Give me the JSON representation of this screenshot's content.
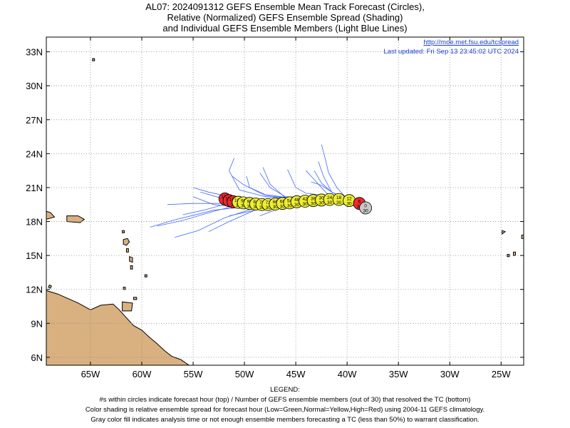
{
  "title": {
    "line1": "AL07: 2024091312 GEFS Ensemble Mean Track Forecast (Circles),",
    "line2": "Relative (Normalized) GEFS Ensemble Spread (Shading)",
    "line3": "and Individual GEFS Ensemble Members (Light Blue Lines)"
  },
  "header_info": {
    "url": "http://moe.met.fsu.edu/tcspread",
    "updated": "Last updated: Fri Sep 13 23:45:02 UTC 2024"
  },
  "axes": {
    "lon_ticks": [
      {
        "lon": -65,
        "label": "65W"
      },
      {
        "lon": -60,
        "label": "60W"
      },
      {
        "lon": -55,
        "label": "55W"
      },
      {
        "lon": -50,
        "label": "50W"
      },
      {
        "lon": -45,
        "label": "45W"
      },
      {
        "lon": -40,
        "label": "40W"
      },
      {
        "lon": -35,
        "label": "35W"
      },
      {
        "lon": -30,
        "label": "30W"
      },
      {
        "lon": -25,
        "label": "25W"
      }
    ],
    "lat_ticks": [
      {
        "lat": 6,
        "label": "6N"
      },
      {
        "lat": 9,
        "label": "9N"
      },
      {
        "lat": 12,
        "label": "12N"
      },
      {
        "lat": 15,
        "label": "15N"
      },
      {
        "lat": 18,
        "label": "18N"
      },
      {
        "lat": 21,
        "label": "21N"
      },
      {
        "lat": 24,
        "label": "24N"
      },
      {
        "lat": 27,
        "label": "27N"
      },
      {
        "lat": 30,
        "label": "30N"
      },
      {
        "lat": 33,
        "label": "33N"
      }
    ],
    "lon_range": [
      -69.3,
      -22.8
    ],
    "lat_range": [
      5.3,
      34.3
    ],
    "grid": true
  },
  "colors": {
    "land": "#d9b07f",
    "member_tracks": "#4466ff",
    "low_spread": "#00bb00",
    "normal_spread": "#eeee33",
    "high_spread": "#ee2a2a",
    "insufficient": "#c8c8c8",
    "link": "#1b3fd1"
  },
  "mean_track": [
    {
      "hour": 0,
      "members": 30,
      "lon": -38.2,
      "lat": 19.2,
      "spread": "gray"
    },
    {
      "hour": 6,
      "members": 30,
      "lon": -38.8,
      "lat": 19.6,
      "spread": "red"
    },
    {
      "hour": 12,
      "members": 30,
      "lon": -39.8,
      "lat": 19.85,
      "spread": "yellow"
    },
    {
      "hour": 18,
      "members": 30,
      "lon": -40.8,
      "lat": 19.95,
      "spread": "yellow"
    },
    {
      "hour": 24,
      "members": 30,
      "lon": -41.7,
      "lat": 19.95,
      "spread": "yellow"
    },
    {
      "hour": 30,
      "members": 30,
      "lon": -42.5,
      "lat": 19.9,
      "spread": "yellow"
    },
    {
      "hour": 36,
      "members": 30,
      "lon": -43.3,
      "lat": 19.85,
      "spread": "yellow"
    },
    {
      "hour": 42,
      "members": 30,
      "lon": -44.1,
      "lat": 19.8,
      "spread": "yellow"
    },
    {
      "hour": 48,
      "members": 30,
      "lon": -44.9,
      "lat": 19.75,
      "spread": "yellow"
    },
    {
      "hour": 54,
      "members": 30,
      "lon": -45.6,
      "lat": 19.65,
      "spread": "yellow"
    },
    {
      "hour": 60,
      "members": 30,
      "lon": -46.3,
      "lat": 19.6,
      "spread": "yellow"
    },
    {
      "hour": 66,
      "members": 30,
      "lon": -47.0,
      "lat": 19.55,
      "spread": "yellow"
    },
    {
      "hour": 72,
      "members": 30,
      "lon": -47.7,
      "lat": 19.5,
      "spread": "yellow"
    },
    {
      "hour": 78,
      "members": 30,
      "lon": -48.3,
      "lat": 19.5,
      "spread": "yellow"
    },
    {
      "hour": 84,
      "members": 30,
      "lon": -48.9,
      "lat": 19.55,
      "spread": "yellow"
    },
    {
      "hour": 90,
      "members": 30,
      "lon": -49.5,
      "lat": 19.6,
      "spread": "yellow"
    },
    {
      "hour": 96,
      "members": 30,
      "lon": -50.1,
      "lat": 19.65,
      "spread": "yellow"
    },
    {
      "hour": 102,
      "members": 30,
      "lon": -50.6,
      "lat": 19.7,
      "spread": "yellow"
    },
    {
      "hour": 108,
      "members": 30,
      "lon": -51.1,
      "lat": 19.75,
      "spread": "red"
    },
    {
      "hour": 114,
      "members": 30,
      "lon": -51.5,
      "lat": 19.85,
      "spread": "red"
    },
    {
      "hour": 120,
      "members": 30,
      "lon": -51.9,
      "lat": 20.0,
      "spread": "red"
    }
  ],
  "member_tracks": [
    [
      [
        -38.5,
        19.3
      ],
      [
        -41,
        19.7
      ],
      [
        -45,
        19.8
      ],
      [
        -49,
        19.4
      ],
      [
        -53,
        19
      ],
      [
        -57,
        18.1
      ],
      [
        -59.2,
        17.5
      ]
    ],
    [
      [
        -38.5,
        19.3
      ],
      [
        -41,
        19.9
      ],
      [
        -44,
        20.2
      ],
      [
        -47,
        20.0
      ],
      [
        -50,
        19.6
      ],
      [
        -53,
        18.9
      ],
      [
        -56,
        18.1
      ],
      [
        -58.5,
        17.6
      ]
    ],
    [
      [
        -38.5,
        19.3
      ],
      [
        -41,
        19.8
      ],
      [
        -45,
        19.6
      ],
      [
        -49,
        19.2
      ],
      [
        -52,
        18.3
      ],
      [
        -54.5,
        17.2
      ],
      [
        -56.8,
        16.6
      ]
    ],
    [
      [
        -38.5,
        19.3
      ],
      [
        -41,
        19.6
      ],
      [
        -45,
        19.5
      ],
      [
        -49,
        19.0
      ],
      [
        -51.5,
        18.0
      ],
      [
        -53.5,
        17.1
      ]
    ],
    [
      [
        -38.5,
        19.3
      ],
      [
        -41,
        19.8
      ],
      [
        -45,
        19.9
      ],
      [
        -49,
        19.7
      ],
      [
        -52,
        19.6
      ],
      [
        -55,
        19.6
      ],
      [
        -57.5,
        19.5
      ]
    ],
    [
      [
        -38.5,
        19.3
      ],
      [
        -40,
        19.9
      ],
      [
        -42,
        20.3
      ],
      [
        -44,
        20.5
      ],
      [
        -45,
        21.0
      ],
      [
        -45.8,
        22.6
      ]
    ],
    [
      [
        -38.5,
        19.3
      ],
      [
        -40,
        20.0
      ],
      [
        -41.5,
        20.6
      ],
      [
        -42.3,
        22.0
      ],
      [
        -42.8,
        23.3
      ]
    ],
    [
      [
        -38.5,
        19.3
      ],
      [
        -40,
        20.0
      ],
      [
        -41,
        21.0
      ],
      [
        -41.8,
        22.3
      ],
      [
        -42.2,
        23.8
      ],
      [
        -42.5,
        24.8
      ]
    ],
    [
      [
        -38.5,
        19.3
      ],
      [
        -40,
        19.9
      ],
      [
        -42,
        20.5
      ],
      [
        -43.2,
        21.7
      ],
      [
        -44,
        22.5
      ]
    ],
    [
      [
        -38.5,
        19.3
      ],
      [
        -40,
        19.8
      ],
      [
        -43,
        20.1
      ],
      [
        -46,
        20.2
      ],
      [
        -47.5,
        21.0
      ],
      [
        -48.5,
        22.3
      ]
    ],
    [
      [
        -38.5,
        19.3
      ],
      [
        -40,
        19.8
      ],
      [
        -43,
        20.0
      ],
      [
        -46,
        20.1
      ],
      [
        -47.5,
        21.3
      ],
      [
        -48.2,
        22.8
      ]
    ],
    [
      [
        -38.5,
        19.3
      ],
      [
        -41,
        19.8
      ],
      [
        -45,
        20.0
      ],
      [
        -48,
        20.2
      ],
      [
        -50.5,
        20.8
      ],
      [
        -51.5,
        22.5
      ],
      [
        -51,
        23.6
      ]
    ],
    [
      [
        -38.5,
        19.3
      ],
      [
        -41,
        19.8
      ],
      [
        -45,
        20.0
      ],
      [
        -48,
        20.4
      ],
      [
        -50,
        21.2
      ],
      [
        -51.2,
        22.0
      ]
    ],
    [
      [
        -38.5,
        19.3
      ],
      [
        -41,
        19.8
      ],
      [
        -45,
        19.9
      ],
      [
        -48,
        19.9
      ],
      [
        -51,
        20.1
      ],
      [
        -53.5,
        20.6
      ],
      [
        -55,
        21.0
      ]
    ],
    [
      [
        -38.5,
        19.3
      ],
      [
        -41,
        19.7
      ],
      [
        -45,
        19.7
      ],
      [
        -48,
        19.5
      ],
      [
        -51,
        19.3
      ],
      [
        -53,
        19.5
      ],
      [
        -55,
        20.2
      ]
    ],
    [
      [
        -38.5,
        19.3
      ],
      [
        -41,
        19.7
      ],
      [
        -44,
        19.7
      ],
      [
        -47,
        19.5
      ],
      [
        -49.5,
        18.9
      ],
      [
        -51.5,
        18.5
      ]
    ],
    [
      [
        -38.5,
        19.3
      ],
      [
        -41,
        19.6
      ],
      [
        -44,
        19.5
      ],
      [
        -46.5,
        19.2
      ],
      [
        -48.5,
        18.5
      ]
    ],
    [
      [
        -38.5,
        19.3
      ],
      [
        -40,
        19.8
      ],
      [
        -41.5,
        20.6
      ],
      [
        -42.5,
        21.2
      ],
      [
        -43.5,
        21.5
      ]
    ],
    [
      [
        -38.5,
        19.3
      ],
      [
        -40,
        19.9
      ],
      [
        -41.5,
        20.6
      ],
      [
        -42.5,
        21.4
      ],
      [
        -43.2,
        22.5
      ]
    ],
    [
      [
        -38.5,
        19.3
      ],
      [
        -41,
        19.8
      ],
      [
        -45,
        19.8
      ],
      [
        -49,
        19.7
      ],
      [
        -52,
        19.5
      ],
      [
        -54,
        19.0
      ],
      [
        -56,
        18.6
      ]
    ],
    [
      [
        -38.5,
        19.3
      ],
      [
        -41,
        19.8
      ],
      [
        -45,
        20.0
      ],
      [
        -48,
        20.3
      ],
      [
        -49.5,
        21.0
      ],
      [
        -49.8,
        22.0
      ]
    ],
    [
      [
        -38.5,
        19.3
      ],
      [
        -41,
        19.7
      ],
      [
        -45,
        19.8
      ],
      [
        -49,
        19.8
      ],
      [
        -52,
        20.0
      ],
      [
        -54.3,
        20.6
      ]
    ]
  ],
  "legend": {
    "heading": "LEGEND:",
    "line1": "#s within circles indicate forecast hour (top) / Number of GEFS ensemble members (out of 30) that resolved the TC (bottom)",
    "line2": "Color shading is relative ensemble spread for forecast hour (Low=Green,Normal=Yellow,High=Red) using 2004-11 GEFS climatology.",
    "line3": "Gray color fill indicates analysis time or not enough ensemble members forecasting a TC (less than 50%) to warrant classification."
  }
}
